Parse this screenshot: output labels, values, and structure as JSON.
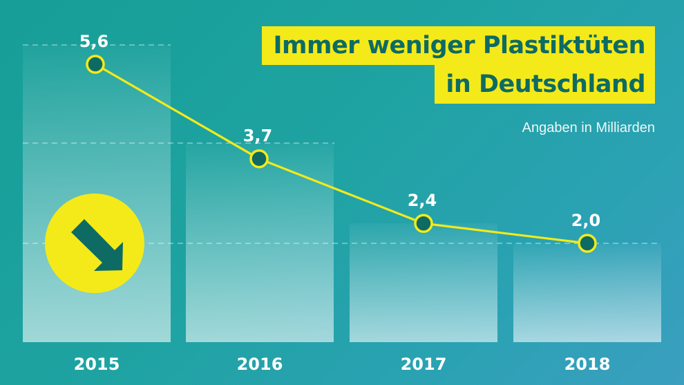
{
  "title_lines": [
    "Immer weniger Plastiktüten",
    "in Deutschland"
  ],
  "subtitle": "Angaben in Milliarden",
  "colors": {
    "accent_yellow": "#f4ea1a",
    "dark_teal": "#0e6b63",
    "line_yellow": "#f4ea1a"
  },
  "badge_icon": "arrow-down-right-icon",
  "chart_data": {
    "type": "line",
    "categories": [
      "2015",
      "2016",
      "2017",
      "2018"
    ],
    "values": [
      5.6,
      3.7,
      2.4,
      2.0
    ],
    "value_labels": [
      "5,6",
      "3,7",
      "2,4",
      "2,0"
    ],
    "title": "Immer weniger Plastiktüten in Deutschland",
    "subtitle": "Angaben in Milliarden",
    "ylim": [
      0,
      6
    ],
    "background_bars": true,
    "grid": "dashed at data levels"
  }
}
